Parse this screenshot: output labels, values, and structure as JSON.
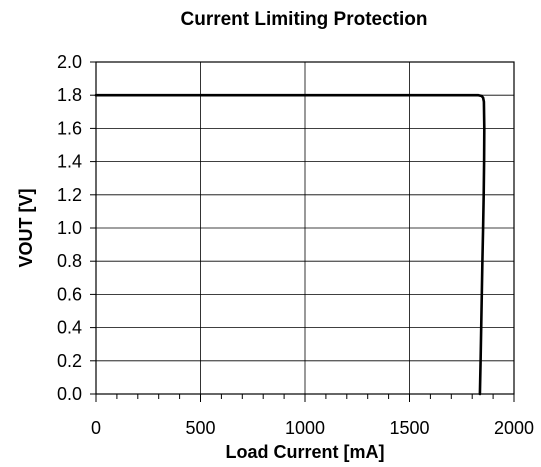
{
  "chart_data": {
    "type": "line",
    "title": "Current Limiting Protection",
    "xlabel": "Load Current [mA]",
    "ylabel": "VOUT [V]",
    "xlim": [
      0,
      2000
    ],
    "ylim": [
      0,
      2.0
    ],
    "xticks": [
      "0",
      "500",
      "1000",
      "1500",
      "2000"
    ],
    "yticks": [
      "0.0",
      "0.2",
      "0.4",
      "0.6",
      "0.8",
      "1.0",
      "1.2",
      "1.4",
      "1.6",
      "1.8",
      "2.0"
    ],
    "grid": true,
    "series": [
      {
        "x": [
          0,
          500,
          1000,
          1500,
          1800,
          1830,
          1845,
          1852,
          1856,
          1858,
          1857,
          1855,
          1852,
          1849,
          1846,
          1843,
          1840,
          1837
        ],
        "y": [
          1.8,
          1.8,
          1.8,
          1.8,
          1.8,
          1.8,
          1.795,
          1.785,
          1.76,
          1.6,
          1.4,
          1.2,
          1.0,
          0.8,
          0.6,
          0.4,
          0.2,
          0.0
        ]
      }
    ]
  }
}
